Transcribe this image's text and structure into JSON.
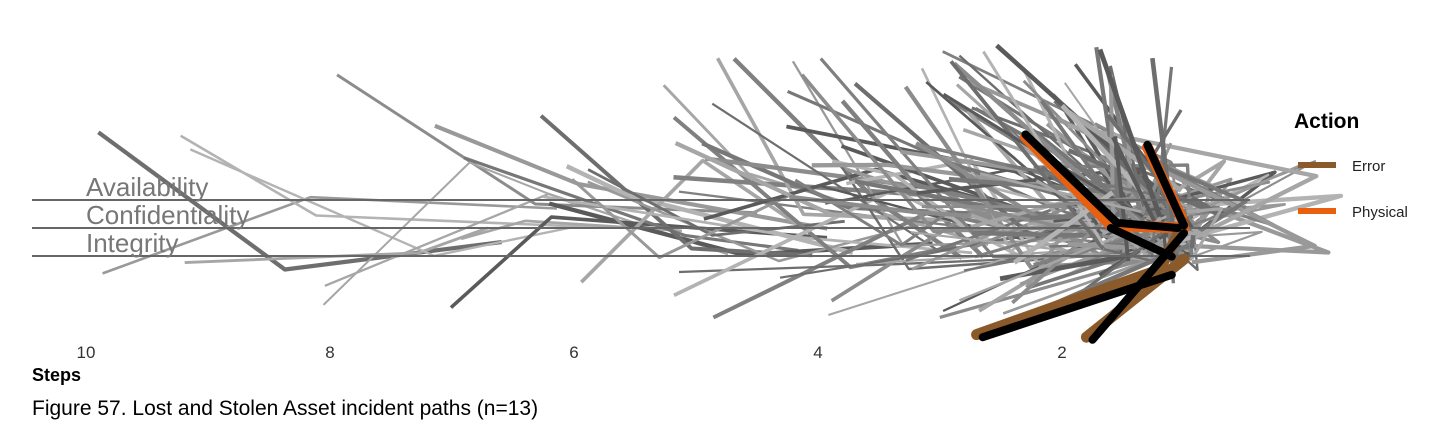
{
  "caption": "Figure 57. Lost and Stolen Asset incident paths (n=13)",
  "chart_data": {
    "type": "line",
    "title": "",
    "xlabel": "Steps",
    "ylabel": "",
    "x_axis_reversed": true,
    "x_ticks": [
      10,
      8,
      6,
      4,
      2
    ],
    "attributes": [
      "Availability",
      "Confidentiality",
      "Integrity"
    ],
    "legend": {
      "title": "Action",
      "placement": "right",
      "items": [
        {
          "name": "Error",
          "color": "#8B5A2B"
        },
        {
          "name": "Physical",
          "color": "#E8600F"
        }
      ]
    },
    "background_path_color": "#888888",
    "highlight_path_color": "#000000",
    "highlight_paths": [
      {
        "action": "Physical",
        "points": [
          [
            2.3,
            1.75
          ],
          [
            1.6,
            0.05
          ],
          [
            1.0,
            0.0
          ]
        ]
      },
      {
        "action": "Physical",
        "points": [
          [
            1.3,
            1.55
          ],
          [
            1.0,
            0.1
          ]
        ]
      },
      {
        "action": "Error",
        "points": [
          [
            2.7,
            -2.05
          ],
          [
            1.2,
            -0.8
          ],
          [
            1.0,
            0.1
          ]
        ]
      },
      {
        "action": "Error",
        "points": [
          [
            1.8,
            -2.1
          ],
          [
            1.0,
            -0.6
          ]
        ]
      },
      {
        "action": null,
        "points": [
          [
            2.3,
            1.8
          ],
          [
            1.55,
            0.1
          ],
          [
            1.05,
            0.0
          ]
        ]
      },
      {
        "action": null,
        "points": [
          [
            1.3,
            1.6
          ],
          [
            1.0,
            0.05
          ]
        ]
      },
      {
        "action": null,
        "points": [
          [
            2.65,
            -2.1
          ],
          [
            1.1,
            -0.9
          ]
        ]
      },
      {
        "action": null,
        "points": [
          [
            1.75,
            -2.15
          ],
          [
            1.0,
            -0.1
          ]
        ]
      },
      {
        "action": null,
        "points": [
          [
            1.6,
            0.0
          ],
          [
            1.1,
            -0.55
          ]
        ]
      }
    ]
  }
}
